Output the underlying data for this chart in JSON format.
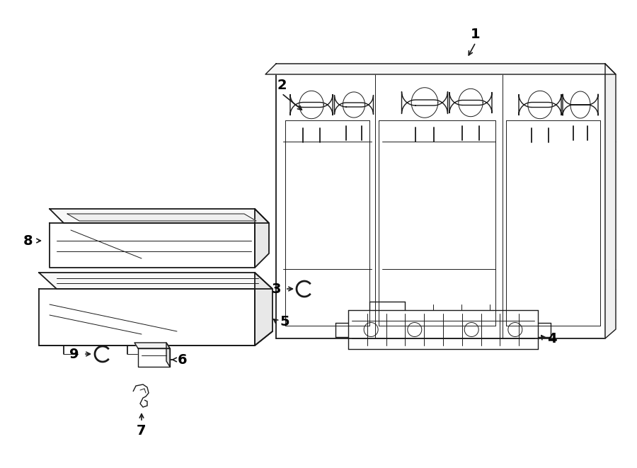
{
  "background_color": "#ffffff",
  "line_color": "#1a1a1a",
  "lw_main": 1.3,
  "lw_thin": 0.7,
  "lw_med": 1.0,
  "label_fontsize": 14,
  "figsize": [
    9.0,
    6.61
  ],
  "dpi": 100
}
